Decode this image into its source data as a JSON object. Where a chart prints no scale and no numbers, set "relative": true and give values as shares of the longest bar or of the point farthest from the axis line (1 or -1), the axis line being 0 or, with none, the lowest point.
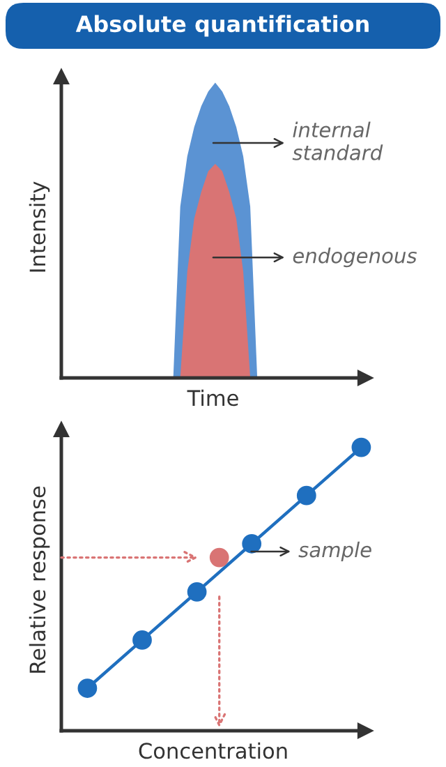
{
  "chart_data": [
    {
      "type": "area",
      "title": "Absolute quantification",
      "xlabel": "Time",
      "ylabel": "Intensity",
      "relative": true,
      "categories": [
        null,
        null,
        null,
        null,
        null,
        null,
        null,
        null,
        null,
        null,
        null,
        null,
        null,
        null,
        null,
        null,
        null,
        null,
        null,
        null,
        null,
        null,
        null,
        null,
        null,
        null,
        null,
        null,
        null,
        null,
        null,
        null,
        null,
        null,
        null,
        null,
        null,
        null,
        null,
        null,
        null,
        null,
        null
      ],
      "series": [
        {
          "color": "#5b93d3",
          "values": [
            0,
            0,
            0,
            0,
            0,
            0,
            0,
            0,
            0,
            0,
            0,
            0,
            0,
            0,
            0,
            0,
            0,
            0.58,
            0.75,
            0.85,
            0.92,
            0.97,
            1,
            0.97,
            0.92,
            0.85,
            0.75,
            0.58,
            0,
            0,
            0,
            0,
            0,
            0,
            0,
            0,
            0,
            0,
            0,
            0,
            0,
            0,
            0
          ]
        },
        {
          "color": "#d97474",
          "values": [
            0,
            0,
            0,
            0,
            0,
            0,
            0,
            0,
            0,
            0,
            0,
            0,
            0,
            0,
            0,
            0,
            0,
            0,
            0.36,
            0.54,
            0.63,
            0.7,
            0.725,
            0.7,
            0.63,
            0.54,
            0.36,
            0,
            0,
            0,
            0,
            0,
            0,
            0,
            0,
            0,
            0,
            0,
            0,
            0,
            0,
            0,
            0
          ]
        }
      ],
      "annotations": [
        "internal standard",
        "endogenous"
      ],
      "grid": false,
      "legend": false,
      "tick_labels": false
    },
    {
      "type": "line",
      "xlabel": "Concentration",
      "ylabel": "Relative response",
      "relative": true,
      "categories": [
        null,
        null,
        null,
        null,
        null,
        null
      ],
      "series": [
        {
          "type": "line",
          "color": "#1f6fbf",
          "marker": "circle",
          "values": [
            0.15,
            0.32,
            0.49,
            0.66,
            0.83,
            1.0
          ]
        }
      ],
      "annotations": [
        "sample"
      ],
      "grid": false,
      "legend": false,
      "tick_labels": false
    }
  ]
}
